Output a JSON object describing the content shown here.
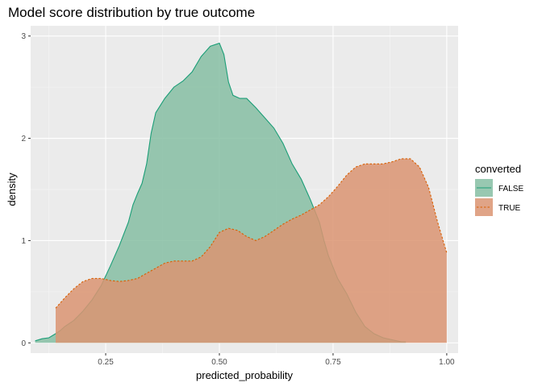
{
  "chart_data": {
    "type": "area",
    "title": "Model score distribution by true outcome",
    "xlabel": "predicted_probability",
    "ylabel": "density",
    "xlim": [
      0.085,
      1.025
    ],
    "ylim": [
      -0.1,
      3.1
    ],
    "x_ticks": [
      0.25,
      0.5,
      0.75,
      1.0
    ],
    "x_tick_labels": [
      "0.25",
      "0.50",
      "0.75",
      "1.00"
    ],
    "y_ticks": [
      0,
      1,
      2,
      3
    ],
    "y_tick_labels": [
      "0",
      "1",
      "2",
      "3"
    ],
    "grid": true,
    "legend": {
      "title": "converted",
      "placement": "right"
    },
    "series": [
      {
        "name": "FALSE",
        "color": "#1B9E77",
        "fill": "#86BEA3",
        "line_style": "solid",
        "points": [
          [
            0.095,
            0.02
          ],
          [
            0.11,
            0.04
          ],
          [
            0.125,
            0.05
          ],
          [
            0.14,
            0.09
          ],
          [
            0.15,
            0.12
          ],
          [
            0.16,
            0.16
          ],
          [
            0.18,
            0.22
          ],
          [
            0.2,
            0.31
          ],
          [
            0.22,
            0.42
          ],
          [
            0.24,
            0.56
          ],
          [
            0.26,
            0.75
          ],
          [
            0.28,
            0.95
          ],
          [
            0.3,
            1.18
          ],
          [
            0.31,
            1.35
          ],
          [
            0.32,
            1.46
          ],
          [
            0.33,
            1.56
          ],
          [
            0.34,
            1.75
          ],
          [
            0.35,
            2.05
          ],
          [
            0.36,
            2.25
          ],
          [
            0.38,
            2.39
          ],
          [
            0.4,
            2.5
          ],
          [
            0.42,
            2.56
          ],
          [
            0.44,
            2.65
          ],
          [
            0.46,
            2.8
          ],
          [
            0.48,
            2.9
          ],
          [
            0.5,
            2.93
          ],
          [
            0.51,
            2.82
          ],
          [
            0.52,
            2.55
          ],
          [
            0.53,
            2.42
          ],
          [
            0.545,
            2.39
          ],
          [
            0.56,
            2.39
          ],
          [
            0.58,
            2.3
          ],
          [
            0.6,
            2.2
          ],
          [
            0.62,
            2.1
          ],
          [
            0.64,
            1.95
          ],
          [
            0.66,
            1.75
          ],
          [
            0.68,
            1.6
          ],
          [
            0.7,
            1.4
          ],
          [
            0.72,
            1.18
          ],
          [
            0.73,
            1.0
          ],
          [
            0.74,
            0.85
          ],
          [
            0.76,
            0.63
          ],
          [
            0.78,
            0.48
          ],
          [
            0.8,
            0.3
          ],
          [
            0.82,
            0.16
          ],
          [
            0.84,
            0.09
          ],
          [
            0.86,
            0.05
          ],
          [
            0.88,
            0.03
          ],
          [
            0.9,
            0.01
          ],
          [
            0.91,
            0.01
          ]
        ]
      },
      {
        "name": "TRUE",
        "color": "#D95F02",
        "fill": "#DA9472",
        "line_style": "dashed",
        "points": [
          [
            0.14,
            0.34
          ],
          [
            0.16,
            0.44
          ],
          [
            0.18,
            0.53
          ],
          [
            0.2,
            0.6
          ],
          [
            0.22,
            0.63
          ],
          [
            0.24,
            0.63
          ],
          [
            0.26,
            0.61
          ],
          [
            0.28,
            0.6
          ],
          [
            0.3,
            0.61
          ],
          [
            0.32,
            0.63
          ],
          [
            0.34,
            0.68
          ],
          [
            0.36,
            0.73
          ],
          [
            0.38,
            0.78
          ],
          [
            0.4,
            0.8
          ],
          [
            0.42,
            0.8
          ],
          [
            0.44,
            0.8
          ],
          [
            0.46,
            0.84
          ],
          [
            0.48,
            0.94
          ],
          [
            0.5,
            1.08
          ],
          [
            0.52,
            1.12
          ],
          [
            0.54,
            1.1
          ],
          [
            0.56,
            1.04
          ],
          [
            0.58,
            1.0
          ],
          [
            0.6,
            1.04
          ],
          [
            0.62,
            1.1
          ],
          [
            0.64,
            1.16
          ],
          [
            0.66,
            1.21
          ],
          [
            0.68,
            1.25
          ],
          [
            0.7,
            1.3
          ],
          [
            0.72,
            1.35
          ],
          [
            0.74,
            1.43
          ],
          [
            0.76,
            1.53
          ],
          [
            0.78,
            1.64
          ],
          [
            0.8,
            1.72
          ],
          [
            0.82,
            1.75
          ],
          [
            0.84,
            1.75
          ],
          [
            0.86,
            1.75
          ],
          [
            0.88,
            1.77
          ],
          [
            0.9,
            1.8
          ],
          [
            0.92,
            1.8
          ],
          [
            0.94,
            1.72
          ],
          [
            0.96,
            1.52
          ],
          [
            0.98,
            1.18
          ],
          [
            1.0,
            0.88
          ]
        ]
      }
    ]
  }
}
